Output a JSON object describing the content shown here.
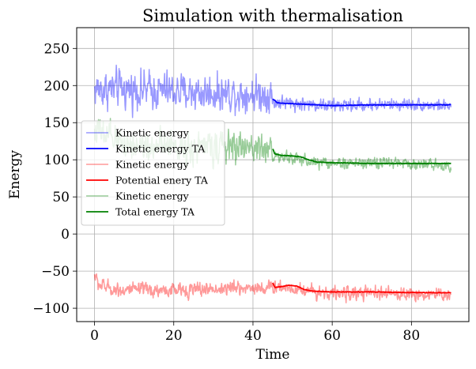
{
  "chart_data": {
    "type": "line",
    "title": "Simulation with thermalisation",
    "xlabel": "Time",
    "ylabel": "Energy",
    "xlim": [
      -4.5,
      94.5
    ],
    "ylim": [
      -118,
      278
    ],
    "xticks": [
      0,
      20,
      40,
      60,
      80
    ],
    "yticks": [
      -100,
      -50,
      0,
      50,
      100,
      150,
      200,
      250
    ],
    "xtick_labels": [
      "0",
      "20",
      "40",
      "60",
      "80"
    ],
    "ytick_labels": [
      "−100",
      "−50",
      "0",
      "50",
      "100",
      "150",
      "200",
      "250"
    ],
    "grid": true,
    "legend_position": "center-left",
    "series": [
      {
        "name": "Kinetic energy",
        "color": "#0000ff",
        "alpha": 0.4,
        "kind": "noisy",
        "x_range": [
          0,
          90
        ],
        "profile": [
          [
            0,
            195
          ],
          [
            10,
            195
          ],
          [
            20,
            192
          ],
          [
            30,
            190
          ],
          [
            44.5,
            188
          ],
          [
            45,
            178
          ],
          [
            50,
            176
          ],
          [
            60,
            173
          ],
          [
            70,
            174
          ],
          [
            80,
            175
          ],
          [
            90,
            172
          ]
        ],
        "noise_amplitude": [
          [
            0,
            24
          ],
          [
            44.5,
            22
          ],
          [
            45,
            9
          ],
          [
            90,
            7
          ]
        ]
      },
      {
        "name": "Kinetic energy TA",
        "color": "#0000ff",
        "alpha": 1,
        "kind": "average",
        "points": [
          [
            45,
            182
          ],
          [
            45.5,
            180
          ],
          [
            46,
            177
          ],
          [
            48,
            176
          ],
          [
            52,
            175
          ],
          [
            56,
            174
          ],
          [
            60,
            173
          ],
          [
            70,
            174
          ],
          [
            80,
            174
          ],
          [
            90,
            174
          ]
        ]
      },
      {
        "name": "Kinetic energy",
        "color": "#ff0000",
        "alpha": 0.4,
        "kind": "noisy",
        "x_range": [
          0,
          90
        ],
        "profile": [
          [
            0,
            -55
          ],
          [
            1,
            -68
          ],
          [
            5,
            -75
          ],
          [
            20,
            -76
          ],
          [
            40,
            -72
          ],
          [
            44.5,
            -73
          ],
          [
            45,
            -70
          ],
          [
            50,
            -73
          ],
          [
            60,
            -80
          ],
          [
            70,
            -80
          ],
          [
            80,
            -81
          ],
          [
            90,
            -82
          ]
        ],
        "noise_amplitude": [
          [
            0,
            9
          ],
          [
            44.5,
            9
          ],
          [
            45,
            9
          ],
          [
            90,
            8
          ]
        ]
      },
      {
        "name": "Potential enery TA",
        "color": "#ff0000",
        "alpha": 1,
        "kind": "average",
        "points": [
          [
            45,
            -66
          ],
          [
            45.5,
            -72
          ],
          [
            47,
            -71
          ],
          [
            49,
            -69
          ],
          [
            51,
            -70
          ],
          [
            53,
            -75
          ],
          [
            55,
            -77
          ],
          [
            60,
            -78
          ],
          [
            70,
            -78
          ],
          [
            80,
            -79
          ],
          [
            90,
            -79
          ]
        ]
      },
      {
        "name": "Kinetic energy",
        "color": "#008000",
        "alpha": 0.4,
        "kind": "noisy",
        "x_range": [
          0,
          90
        ],
        "profile": [
          [
            0,
            142
          ],
          [
            2,
            132
          ],
          [
            10,
            120
          ],
          [
            20,
            117
          ],
          [
            30,
            118
          ],
          [
            40,
            116
          ],
          [
            44.5,
            117
          ],
          [
            45,
            104
          ],
          [
            50,
            102
          ],
          [
            55,
            97
          ],
          [
            65,
            95
          ],
          [
            75,
            96
          ],
          [
            90,
            92
          ]
        ],
        "noise_amplitude": [
          [
            0,
            20
          ],
          [
            44.5,
            19
          ],
          [
            45,
            8
          ],
          [
            90,
            7
          ]
        ]
      },
      {
        "name": "Total energy TA",
        "color": "#008000",
        "alpha": 1,
        "kind": "average",
        "points": [
          [
            45,
            115
          ],
          [
            45.5,
            108
          ],
          [
            47,
            106
          ],
          [
            50,
            105
          ],
          [
            52,
            104
          ],
          [
            54,
            100
          ],
          [
            56,
            97
          ],
          [
            60,
            96
          ],
          [
            70,
            95
          ],
          [
            80,
            95
          ],
          [
            90,
            95
          ]
        ]
      }
    ]
  }
}
